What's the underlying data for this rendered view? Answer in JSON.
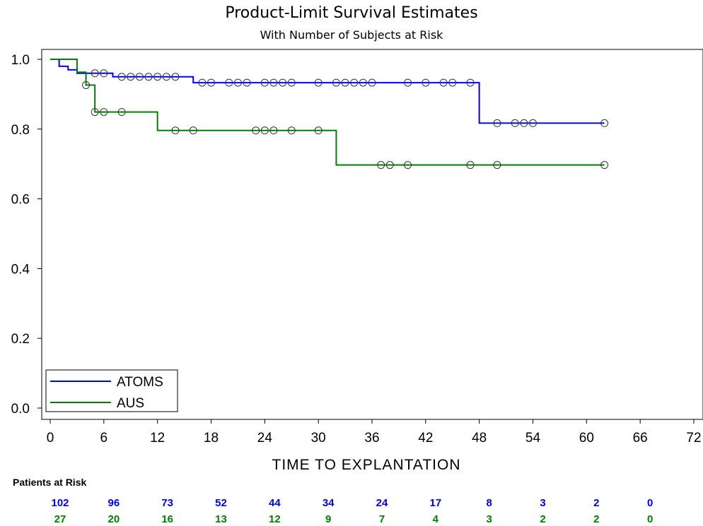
{
  "chart_data": {
    "type": "line",
    "title": "Product-Limit Survival Estimates",
    "subtitle": "With Number of Subjects at Risk",
    "xlabel": "TIME TO EXPLANTATION",
    "ylabel": "",
    "xlim": [
      0,
      72
    ],
    "ylim": [
      0,
      1.0
    ],
    "xticks": [
      0,
      6,
      12,
      18,
      24,
      30,
      36,
      42,
      48,
      54,
      60,
      66,
      72
    ],
    "yticks": [
      "0.0",
      "0.2",
      "0.4",
      "0.6",
      "0.8",
      "1.0"
    ],
    "yticks_values": [
      0,
      0.2,
      0.4,
      0.6,
      0.8,
      1.0
    ],
    "grid": false,
    "legend_position": "bottom-left",
    "series": [
      {
        "name": "ATOMS",
        "color": "#0000ff",
        "steps": [
          [
            0,
            1.0
          ],
          [
            1,
            0.98
          ],
          [
            2,
            0.97
          ],
          [
            3,
            0.96
          ],
          [
            7,
            0.95
          ],
          [
            16,
            0.933
          ],
          [
            48,
            0.817
          ],
          [
            62,
            0.817
          ]
        ],
        "censored": [
          [
            5,
            0.96
          ],
          [
            6,
            0.96
          ],
          [
            8,
            0.95
          ],
          [
            9,
            0.95
          ],
          [
            10,
            0.95
          ],
          [
            11,
            0.95
          ],
          [
            12,
            0.95
          ],
          [
            13,
            0.95
          ],
          [
            14,
            0.95
          ],
          [
            17,
            0.933
          ],
          [
            18,
            0.933
          ],
          [
            20,
            0.933
          ],
          [
            21,
            0.933
          ],
          [
            22,
            0.933
          ],
          [
            24,
            0.933
          ],
          [
            25,
            0.933
          ],
          [
            26,
            0.933
          ],
          [
            27,
            0.933
          ],
          [
            30,
            0.933
          ],
          [
            32,
            0.933
          ],
          [
            33,
            0.933
          ],
          [
            34,
            0.933
          ],
          [
            35,
            0.933
          ],
          [
            36,
            0.933
          ],
          [
            40,
            0.933
          ],
          [
            42,
            0.933
          ],
          [
            44,
            0.933
          ],
          [
            45,
            0.933
          ],
          [
            47,
            0.933
          ],
          [
            50,
            0.817
          ],
          [
            52,
            0.817
          ],
          [
            53,
            0.817
          ],
          [
            54,
            0.817
          ],
          [
            62,
            0.817
          ]
        ]
      },
      {
        "name": "AUS",
        "color": "#008000",
        "steps": [
          [
            0,
            1.0
          ],
          [
            3,
            0.963
          ],
          [
            4,
            0.926
          ],
          [
            5,
            0.849
          ],
          [
            12,
            0.796
          ],
          [
            32,
            0.697
          ],
          [
            62,
            0.697
          ]
        ],
        "censored": [
          [
            4,
            0.926
          ],
          [
            5,
            0.849
          ],
          [
            6,
            0.849
          ],
          [
            8,
            0.849
          ],
          [
            14,
            0.796
          ],
          [
            16,
            0.796
          ],
          [
            23,
            0.796
          ],
          [
            24,
            0.796
          ],
          [
            25,
            0.796
          ],
          [
            27,
            0.796
          ],
          [
            30,
            0.796
          ],
          [
            37,
            0.697
          ],
          [
            38,
            0.697
          ],
          [
            40,
            0.697
          ],
          [
            47,
            0.697
          ],
          [
            50,
            0.697
          ],
          [
            62,
            0.697
          ]
        ]
      }
    ],
    "risk_table": {
      "title": "Patients at Risk",
      "times": [
        0,
        6,
        12,
        18,
        24,
        30,
        36,
        42,
        48,
        54,
        60,
        66
      ],
      "rows": [
        {
          "name": "ATOMS",
          "color": "#0000ff",
          "values": [
            "102",
            "96",
            "73",
            "52",
            "44",
            "34",
            "24",
            "17",
            "8",
            "3",
            "2",
            "0"
          ]
        },
        {
          "name": "AUS",
          "color": "#008000",
          "values": [
            "27",
            "20",
            "16",
            "13",
            "12",
            "9",
            "7",
            "4",
            "3",
            "2",
            "2",
            "0"
          ]
        }
      ]
    }
  }
}
